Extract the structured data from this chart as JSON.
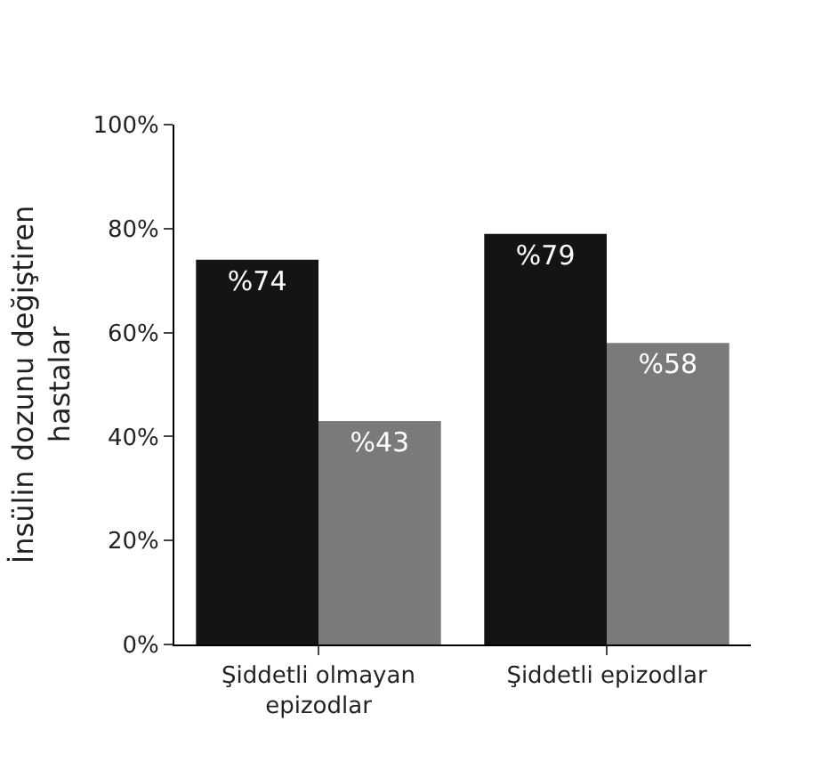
{
  "chart_data": {
    "type": "bar",
    "ylabel": "İnsülin dozunu değiştiren\nhastalar",
    "categories": [
      "Şiddetli olmayan\nepizodlar",
      "Şiddetli epizodlar"
    ],
    "series": [
      {
        "color": "#141414",
        "values": [
          74,
          79
        ],
        "value_labels": [
          "%74",
          "%79"
        ]
      },
      {
        "color": "#7a7a7a",
        "values": [
          43,
          58
        ],
        "value_labels": [
          "%43",
          "%58"
        ]
      }
    ],
    "ylim": [
      0,
      100
    ],
    "yticks": [
      {
        "value": 0,
        "label": "0%"
      },
      {
        "value": 20,
        "label": "20%"
      },
      {
        "value": 40,
        "label": "40%"
      },
      {
        "value": 60,
        "label": "60%"
      },
      {
        "value": 80,
        "label": "80%"
      },
      {
        "value": 100,
        "label": "100%"
      }
    ],
    "legend": false
  }
}
